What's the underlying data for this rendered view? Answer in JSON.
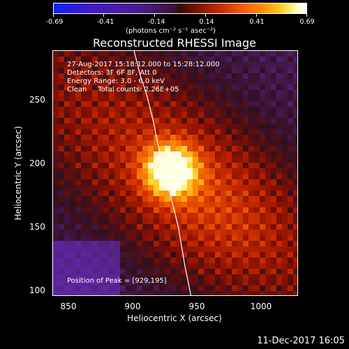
{
  "colorbar": {
    "tick_labels": [
      "-0.69",
      "-0.41",
      "-0.14",
      "0.14",
      "0.41",
      "0.69"
    ],
    "units": "(photons cm⁻² s⁻¹ asec⁻²)"
  },
  "title": "Reconstructed RHESSI Image",
  "annotations": {
    "time_range": "27-Aug-2017 15:18:12.000 to 15:28:12.000",
    "detectors": "Detectors: 3F 6F 8F, Att 0",
    "energy": "Energy Range: 3.0 - 6.0 keV",
    "clean": "Clean     Total counts: 2.26E+05",
    "peak": "Position of Peak = [929,195]"
  },
  "axes": {
    "xlabel": "Heliocentric X (arcsec)",
    "ylabel": "Heliocentric Y (arcsec)",
    "xticks": [
      "850",
      "900",
      "950",
      "1000"
    ],
    "yticks": [
      "250",
      "200",
      "150",
      "100"
    ]
  },
  "footer": "11-Dec-2017 16:05",
  "chart_data": {
    "type": "heatmap",
    "title": "Reconstructed RHESSI Image",
    "xlabel": "Heliocentric X (arcsec)",
    "ylabel": "Heliocentric Y (arcsec)",
    "xlim": [
      836,
      1030
    ],
    "ylim": [
      95,
      290
    ],
    "color_range": [
      -0.69,
      0.69
    ],
    "peak": {
      "x": 929,
      "y": 195
    },
    "limb_curve_x": [
      900,
      905,
      910,
      915,
      920,
      925,
      930,
      935,
      940,
      945
    ],
    "limb_curve_y": [
      290,
      270,
      255,
      235,
      210,
      190,
      170,
      150,
      120,
      95
    ]
  }
}
